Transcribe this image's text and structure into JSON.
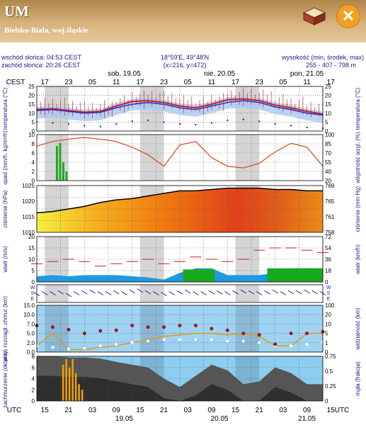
{
  "header": {
    "title": "UM",
    "location": "Bielsko-Biała, woj.śląskie"
  },
  "info": {
    "sunrise": "wschód słońca: 04:53 CEST",
    "sunset": "zachód słońca: 20:26 CEST",
    "coords": "18°59'E, 49°48'N",
    "grid": "(x=216, y=472)",
    "elev_label": "wysokość (min, środek, max)",
    "elev_values": "255 - 407 - 798 m"
  },
  "icons": {
    "box": "box-icon",
    "close": "close-icon"
  },
  "colors": {
    "header": "#c79d63",
    "close": "#f2a021",
    "night": "#d4d4d4",
    "seriesRed": "#c81e1e",
    "windBlue": "#1f9ae0",
    "humid": "#d2582a"
  },
  "time_axis": {
    "top_label": "CEST",
    "bottom_label": "UTC",
    "top_hours": [
      "17",
      "23",
      "05",
      "11",
      "17",
      "23",
      "05",
      "11",
      "17",
      "23",
      "05",
      "11",
      "17"
    ],
    "bottom_hours": [
      "15",
      "21",
      "03",
      "09",
      "15",
      "21",
      "03",
      "09",
      "15",
      "21",
      "03",
      "09",
      "15"
    ],
    "top_dates": [
      "sob, 19.05",
      "nie, 20.05",
      "pon, 21.05"
    ],
    "bottom_dates": [
      "19.05",
      "20.05",
      "21.05"
    ],
    "night_bands": [
      [
        0.5,
        2
      ],
      [
        6.5,
        8
      ],
      [
        12.5,
        14
      ]
    ]
  },
  "chart_data": [
    {
      "type": "line",
      "title": "",
      "ylabel": "temperatura (°C)",
      "ylim": [
        0,
        25
      ],
      "yticks": [
        "25",
        "20",
        "15",
        "10",
        "5",
        "0"
      ],
      "x": [
        0,
        1,
        2,
        3,
        4,
        5,
        6,
        7,
        8,
        9,
        10,
        11,
        12,
        13,
        14,
        15,
        16,
        17,
        18
      ],
      "series": [
        {
          "name": "",
          "values": [
            12,
            12.5,
            11.5,
            10.5,
            11,
            14,
            16.5,
            17,
            16,
            14,
            13,
            15,
            17.5,
            18,
            17,
            14.5,
            13,
            11,
            9.5
          ]
        },
        {
          "name": "",
          "values": [
            11.5,
            12,
            11,
            10,
            10.5,
            13,
            15,
            16,
            15,
            13,
            12,
            14,
            16,
            17,
            16,
            13.5,
            12,
            10,
            9
          ]
        },
        {
          "name": "",
          "values": [
            5,
            4.5,
            4,
            3,
            2.5,
            4,
            5.5,
            6,
            5,
            4,
            3.5,
            4.5,
            6,
            6.5,
            5.5,
            4,
            3,
            2,
            1.5
          ]
        }
      ]
    },
    {
      "type": "bar",
      "title": "",
      "ylabel": "opad (mm/h, kg/m²/h)",
      "ylim": [
        0,
        10
      ],
      "yticks": [
        "10",
        "8",
        "6",
        "4",
        "2",
        "0"
      ],
      "bars": [
        {
          "x": 1.2,
          "value": 7.5
        },
        {
          "x": 1.4,
          "value": 8.2
        },
        {
          "x": 1.6,
          "value": 4
        },
        {
          "x": 1.8,
          "value": 2
        }
      ],
      "secondary": {
        "ylabel": "wilgotność wzgl. (%)",
        "ylim": [
          20,
          100
        ],
        "yticks": [
          "100",
          "85",
          "70",
          "55",
          "40",
          "20"
        ],
        "x": [
          0,
          1,
          2,
          3,
          4,
          5,
          6,
          7,
          8,
          9,
          10,
          11,
          12,
          13,
          14,
          15,
          16,
          17,
          18
        ],
        "values": [
          80,
          88,
          92,
          95,
          92,
          88,
          78,
          65,
          45,
          82,
          88,
          60,
          45,
          42,
          50,
          70,
          85,
          78,
          45
        ]
      }
    },
    {
      "type": "area",
      "title": "",
      "ylabel": "ciśnienie (hPa)",
      "ylim": [
        1008,
        1026
      ],
      "yticks": [
        "1025",
        "1020",
        "1015",
        "1010"
      ],
      "secondary": {
        "ylabel": "ciśnienie (mm Hg)",
        "yticks": [
          "769",
          "765",
          "761",
          "758"
        ]
      },
      "x": [
        0,
        1,
        2,
        3,
        4,
        5,
        6,
        7,
        8,
        9,
        10,
        11,
        12,
        13,
        14,
        15,
        16,
        17,
        18
      ],
      "values": [
        1015.5,
        1016,
        1017,
        1018,
        1019.5,
        1020.5,
        1021,
        1022,
        1023,
        1024,
        1024,
        1024.5,
        1025,
        1025,
        1025,
        1024.5,
        1024.5,
        1024,
        1024
      ]
    },
    {
      "type": "area",
      "title": "",
      "ylabel": "wiatr (m/s)",
      "ylim": [
        0,
        20
      ],
      "yticks": [
        "20",
        "15",
        "10",
        "5",
        "0"
      ],
      "secondary": {
        "ylabel": "wiatr (km/h)",
        "yticks": [
          "72",
          "54",
          "36",
          "18",
          "0"
        ]
      },
      "x": [
        0,
        1,
        2,
        3,
        4,
        5,
        6,
        7,
        8,
        9,
        10,
        11,
        12,
        13,
        14,
        15,
        16,
        17,
        18
      ],
      "values": [
        2.5,
        3,
        2.5,
        3,
        3,
        3,
        2.5,
        2,
        1,
        4,
        6,
        6,
        3,
        3,
        3,
        4,
        6,
        6,
        6
      ],
      "gusts": [
        8,
        9,
        10,
        9,
        7,
        8,
        9,
        10,
        8,
        9,
        11,
        10,
        9,
        10,
        14,
        15,
        15,
        14,
        13
      ]
    },
    {
      "type": "scatter",
      "title": "",
      "ylabel": "wiatr",
      "ylim": [
        0,
        1
      ],
      "yticks": [
        "W",
        "S",
        "E"
      ],
      "x": [
        0,
        0.5,
        1,
        1.5,
        2,
        2.5,
        3,
        3.5,
        4,
        4.5,
        5,
        5.5,
        6,
        6.5,
        7,
        7.5,
        8,
        8.5,
        9,
        9.5,
        10,
        10.5,
        11,
        11.5,
        12,
        12.5,
        13,
        13.5,
        14,
        14.5,
        15,
        15.5,
        16,
        16.5,
        17,
        17.5,
        18
      ],
      "values": [
        0.55,
        0.5,
        0.5,
        0.45,
        0.6,
        0.5,
        0.45,
        0.4,
        0.5,
        0.5,
        0.45,
        0.5,
        0.4,
        0.35,
        0.45,
        0.5,
        0.55,
        0.5,
        0.45,
        0.4,
        0.5,
        0.5,
        0.45,
        0.45,
        0.5,
        0.45,
        0.4,
        0.45,
        0.5,
        0.45,
        0.4,
        0.5,
        0.45,
        0.45,
        0.4,
        0.45,
        0.5
      ]
    },
    {
      "type": "line",
      "title": "",
      "ylabel": "pion. rozciągł. chmur (km)",
      "ylim": [
        0,
        15
      ],
      "yticks": [
        "15.0",
        "10.0",
        "7.0",
        "5.0",
        "2.0",
        "0.0"
      ],
      "secondary": {
        "ylabel": "widzialność (km)",
        "yticks": [
          "100",
          "20",
          "10",
          "5",
          "1",
          "0"
        ]
      },
      "x": [
        0,
        1,
        2,
        3,
        4,
        5,
        6,
        7,
        8,
        9,
        10,
        11,
        12,
        13,
        14,
        15,
        16,
        17,
        18
      ],
      "series": [
        {
          "name": "",
          "values": [
            2,
            6,
            0.8,
            0.8,
            1.5,
            2,
            3,
            4,
            5,
            5.5,
            6,
            6,
            5.5,
            6,
            5,
            2,
            2,
            6,
            6
          ]
        },
        {
          "name": "",
          "values": [
            2,
            1.5,
            1,
            1.2,
            2,
            2.5,
            3,
            3.5,
            4,
            4,
            4,
            4,
            3.5,
            3.5,
            3,
            2,
            2,
            2.5,
            3
          ]
        },
        {
          "name": "",
          "values": [
            8.5,
            8,
            7.2,
            6,
            6.8,
            7,
            8.5,
            8,
            8,
            8.5,
            8.5,
            7.5,
            7,
            6,
            5.5,
            2.5,
            6,
            6,
            6.5
          ]
        }
      ]
    },
    {
      "type": "area",
      "title": "",
      "ylabel": "zachmurzenie (oktanty)",
      "ylim": [
        0,
        8
      ],
      "yticks": [
        "8",
        "6",
        "4",
        "2",
        "0"
      ],
      "secondary": {
        "ylabel": "mgła (frakcja)",
        "yticks": [
          "0.75",
          "0.5",
          "0.25",
          "0"
        ]
      },
      "x": [
        0,
        1,
        2,
        3,
        4,
        5,
        6,
        7,
        8,
        9,
        10,
        11,
        12,
        13,
        14,
        15,
        16,
        17,
        18
      ],
      "values": [
        8,
        8,
        7.8,
        7.8,
        7.6,
        7,
        6.5,
        6,
        4,
        2.5,
        4.5,
        6.5,
        5.5,
        3,
        3.5,
        6,
        5,
        3,
        3
      ],
      "bars": [
        {
          "x": 1.6,
          "value": 6.5
        },
        {
          "x": 1.8,
          "value": 7.5
        },
        {
          "x": 2.0,
          "value": 6
        },
        {
          "x": 2.2,
          "value": 7.5
        },
        {
          "x": 2.4,
          "value": 5
        },
        {
          "x": 2.6,
          "value": 3
        },
        {
          "x": 2.8,
          "value": 2
        }
      ]
    }
  ]
}
